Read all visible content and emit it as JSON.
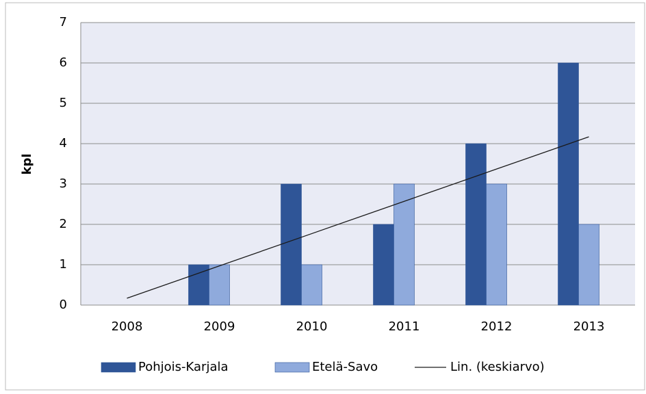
{
  "chart_data": {
    "type": "bar",
    "y_label": "kpl",
    "categories": [
      "2008",
      "2009",
      "2010",
      "2011",
      "2012",
      "2013"
    ],
    "series": [
      {
        "name": "Pohjois-Karjala",
        "color": "#2f5597",
        "values": [
          0,
          1,
          3,
          2,
          4,
          6
        ]
      },
      {
        "name": "Etelä-Savo",
        "color": "#8faadc",
        "values": [
          0,
          1,
          1,
          3,
          3,
          2
        ]
      },
      {
        "name": "Lin. (keskiarvo)",
        "type": "line",
        "color": "#1a1a1a",
        "values": [
          0.17,
          0.97,
          1.77,
          2.57,
          3.37,
          4.17
        ]
      }
    ],
    "ylim": [
      0,
      7
    ],
    "yticks": [
      0,
      1,
      2,
      3,
      4,
      5,
      6,
      7
    ],
    "grid": true,
    "legend": "bottom"
  }
}
